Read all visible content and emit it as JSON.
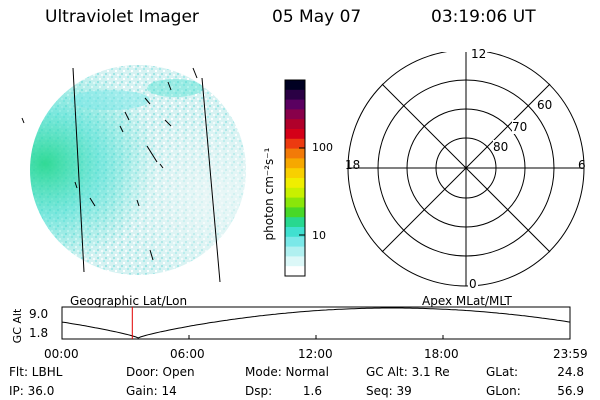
{
  "header": {
    "title": "Ultraviolet Imager",
    "date": "05 May 07",
    "time": "03:19:06 UT"
  },
  "colorbar": {
    "unit_label": "photon cm⁻²s⁻¹",
    "ticks": [
      "100",
      "10"
    ],
    "colors": [
      "#000022",
      "#2a0044",
      "#5a0060",
      "#88004a",
      "#b0002a",
      "#d40018",
      "#ec3a10",
      "#f27a08",
      "#f6a800",
      "#f8d000",
      "#f0ee00",
      "#c8f000",
      "#8ae60a",
      "#48d828",
      "#28d890",
      "#40e0d0",
      "#7ae8e8",
      "#b0f0f0",
      "#dcf8f8",
      "#ffffff"
    ]
  },
  "polar": {
    "mlt_labels": [
      "12",
      "18",
      "6",
      "0"
    ],
    "mlat_labels": [
      "60",
      "70",
      "80"
    ]
  },
  "track": {
    "left_title": "Geographic Lat/Lon",
    "right_title": "Apex MLat/MLT",
    "ylabel": "GC Alt",
    "y_ticks": [
      "9.0",
      "1.8"
    ],
    "x_ticks": [
      "00:00",
      "06:00",
      "12:00",
      "18:00",
      "23:59"
    ],
    "marker_time_hours": 3.32
  },
  "info": {
    "filter": "Flt: LBHL",
    "door": "Door: Open",
    "mode": "Mode: Normal",
    "gc_alt": "GC Alt: 3.1 Re",
    "glat_label": "GLat:",
    "glat_value": "24.8",
    "ip": "IP: 36.0",
    "gain": "Gain: 14",
    "dsp_label": "Dsp:",
    "dsp_value": "1.6",
    "seq": "Seq: 39",
    "glon_label": "GLon:",
    "glon_value": "56.9"
  }
}
